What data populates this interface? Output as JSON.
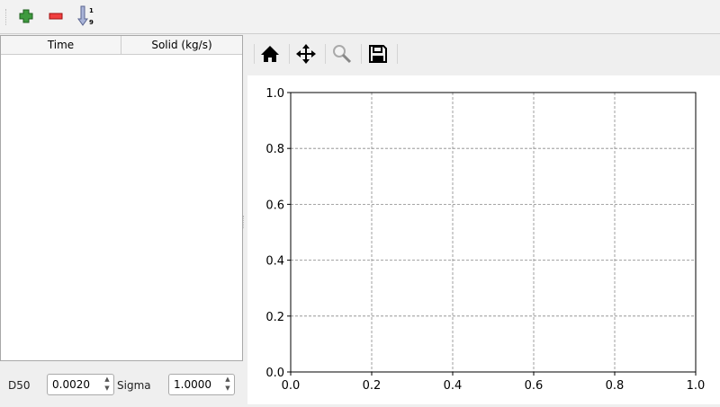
{
  "toolbar": {
    "items": [
      {
        "icon": "plus-icon",
        "label": "Add row"
      },
      {
        "icon": "minus-icon",
        "label": "Remove row"
      },
      {
        "icon": "sort-ascending-icon",
        "label": "Sort"
      }
    ]
  },
  "table": {
    "columns": [
      "Time",
      "Solid (kg/s)"
    ],
    "rows": []
  },
  "params": {
    "d50_label": "D50",
    "d50_value": "0.0020",
    "sigma_label": "Sigma",
    "sigma_value": "1.0000"
  },
  "plot_toolbar": {
    "items": [
      "home-icon",
      "pan-icon",
      "zoom-icon",
      "save-icon"
    ]
  },
  "chart_data": {
    "type": "line",
    "series": [],
    "xlim": [
      0,
      1
    ],
    "ylim": [
      0,
      1
    ],
    "xticks": [
      "0.0",
      "0.2",
      "0.4",
      "0.6",
      "0.8",
      "1.0"
    ],
    "yticks": [
      "0.0",
      "0.2",
      "0.4",
      "0.6",
      "0.8",
      "1.0"
    ],
    "grid": true,
    "grid_color": "#888888"
  }
}
